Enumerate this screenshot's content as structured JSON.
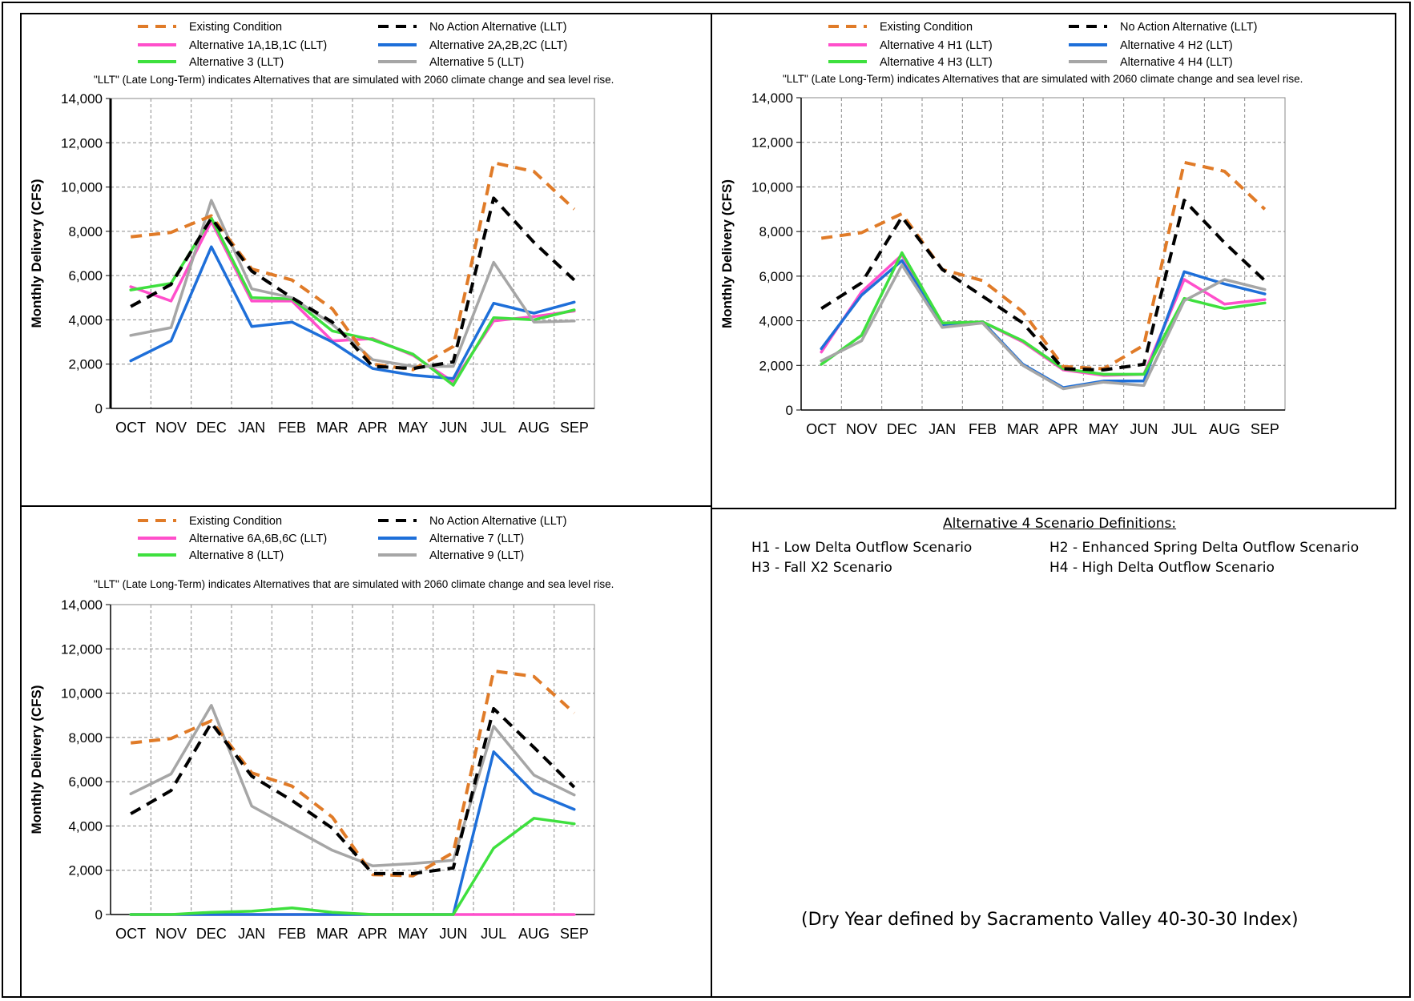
{
  "chart_data": [
    {
      "type": "line",
      "title": "",
      "note": "\"LLT\" (Late Long-Term) indicates Alternatives that are simulated with 2060 climate change and sea level rise.",
      "xlabel": "",
      "ylabel": "Monthly Delivery (CFS)",
      "ylim": [
        0,
        14000
      ],
      "yticks": [
        "0",
        "2,000",
        "4,000",
        "6,000",
        "8,000",
        "10,000",
        "12,000",
        "14,000"
      ],
      "grid": true,
      "legend_position": "top",
      "categories": [
        "OCT",
        "NOV",
        "DEC",
        "JAN",
        "FEB",
        "MAR",
        "APR",
        "MAY",
        "JUN",
        "JUL",
        "AUG",
        "SEP"
      ],
      "series": [
        {
          "name": "Existing Condition",
          "color": "#E07B28",
          "dashed": true,
          "values": [
            7750,
            7950,
            8700,
            6300,
            5800,
            4500,
            2000,
            1750,
            2800,
            11100,
            10700,
            9000
          ]
        },
        {
          "name": "No Action Alternative (LLT)",
          "color": "#000000",
          "dashed": true,
          "values": [
            4600,
            5600,
            8600,
            6200,
            5000,
            3900,
            1900,
            1800,
            2100,
            9500,
            7500,
            5800
          ]
        },
        {
          "name": "Alternative 1A,1B,1C (LLT)",
          "color": "#FF4FCB",
          "dashed": false,
          "values": [
            5500,
            4850,
            8450,
            4850,
            4850,
            3050,
            3150,
            2400,
            1200,
            3950,
            4150,
            4400
          ]
        },
        {
          "name": "Alternative 2A,2B,2C (LLT)",
          "color": "#1E6FD9",
          "dashed": false,
          "values": [
            2150,
            3050,
            7300,
            3700,
            3900,
            3000,
            1800,
            1500,
            1350,
            4750,
            4300,
            4800
          ]
        },
        {
          "name": "Alternative 3 (LLT)",
          "color": "#3EE03E",
          "dashed": false,
          "values": [
            5350,
            5650,
            8600,
            5000,
            4950,
            3500,
            3100,
            2450,
            1050,
            4100,
            4000,
            4450
          ]
        },
        {
          "name": "Alternative 5 (LLT)",
          "color": "#A6A6A6",
          "dashed": false,
          "values": [
            3300,
            3650,
            9400,
            5400,
            5000,
            3800,
            2200,
            1900,
            1900,
            6600,
            3900,
            3950
          ]
        }
      ]
    },
    {
      "type": "line",
      "title": "",
      "note": "\"LLT\" (Late Long-Term) indicates Alternatives that are simulated with 2060 climate change and sea level rise.",
      "xlabel": "",
      "ylabel": "Monthly Delivery (CFS)",
      "ylim": [
        0,
        14000
      ],
      "yticks": [
        "0",
        "2,000",
        "4,000",
        "6,000",
        "8,000",
        "10,000",
        "12,000",
        "14,000"
      ],
      "grid": true,
      "legend_position": "top",
      "categories": [
        "OCT",
        "NOV",
        "DEC",
        "JAN",
        "FEB",
        "MAR",
        "APR",
        "MAY",
        "JUN",
        "JUL",
        "AUG",
        "SEP"
      ],
      "series": [
        {
          "name": "Existing Condition",
          "color": "#E07B28",
          "dashed": true,
          "values": [
            7700,
            7950,
            8800,
            6300,
            5800,
            4400,
            1950,
            1850,
            2900,
            11100,
            10700,
            9000
          ]
        },
        {
          "name": "No Action Alternative (LLT)",
          "color": "#000000",
          "dashed": true,
          "values": [
            4550,
            5700,
            8650,
            6300,
            5100,
            3900,
            1850,
            1800,
            2050,
            9400,
            7500,
            5800
          ]
        },
        {
          "name": "Alternative 4 H1 (LLT)",
          "color": "#FF4FCB",
          "dashed": false,
          "values": [
            2600,
            5300,
            6950,
            3900,
            3950,
            3050,
            1800,
            1550,
            1600,
            5850,
            4750,
            4950
          ]
        },
        {
          "name": "Alternative 4 H2 (LLT)",
          "color": "#1E6FD9",
          "dashed": false,
          "values": [
            2750,
            5150,
            6700,
            3800,
            3950,
            2050,
            1000,
            1300,
            1300,
            6200,
            5650,
            5200
          ]
        },
        {
          "name": "Alternative 4 H3 (LLT)",
          "color": "#3EE03E",
          "dashed": false,
          "values": [
            2050,
            3350,
            7050,
            3900,
            3950,
            3100,
            1850,
            1600,
            1600,
            5000,
            4550,
            4800
          ]
        },
        {
          "name": "Alternative 4 H4 (LLT)",
          "color": "#A6A6A6",
          "dashed": false,
          "values": [
            2200,
            3100,
            6500,
            3700,
            3900,
            2000,
            950,
            1250,
            1100,
            4900,
            5850,
            5400
          ]
        }
      ]
    },
    {
      "type": "line",
      "title": "",
      "note": "\"LLT\" (Late Long-Term) indicates Alternatives that are simulated with 2060 climate change and sea level rise.",
      "xlabel": "",
      "ylabel": "Monthly Delivery (CFS)",
      "ylim": [
        0,
        14000
      ],
      "yticks": [
        "0",
        "2,000",
        "4,000",
        "6,000",
        "8,000",
        "10,000",
        "12,000",
        "14,000"
      ],
      "grid": true,
      "legend_position": "top",
      "categories": [
        "OCT",
        "NOV",
        "DEC",
        "JAN",
        "FEB",
        "MAR",
        "APR",
        "MAY",
        "JUN",
        "JUL",
        "AUG",
        "SEP"
      ],
      "series": [
        {
          "name": "Existing Condition",
          "color": "#E07B28",
          "dashed": true,
          "values": [
            7750,
            7950,
            8750,
            6400,
            5800,
            4400,
            1800,
            1750,
            2800,
            11000,
            10750,
            9100
          ]
        },
        {
          "name": "No Action Alternative (LLT)",
          "color": "#000000",
          "dashed": true,
          "values": [
            4550,
            5600,
            8650,
            6250,
            5150,
            3900,
            1850,
            1850,
            2100,
            9300,
            7550,
            5750
          ]
        },
        {
          "name": "Alternative 6A,6B,6C (LLT)",
          "color": "#FF4FCB",
          "dashed": false,
          "values": [
            0,
            0,
            0,
            0,
            0,
            0,
            0,
            0,
            0,
            0,
            0,
            0
          ]
        },
        {
          "name": "Alternative 7 (LLT)",
          "color": "#1E6FD9",
          "dashed": false,
          "values": [
            0,
            0,
            0,
            0,
            0,
            0,
            0,
            0,
            0,
            7350,
            5500,
            4750
          ]
        },
        {
          "name": "Alternative 8 (LLT)",
          "color": "#3EE03E",
          "dashed": false,
          "values": [
            0,
            0,
            100,
            150,
            300,
            100,
            0,
            0,
            0,
            3000,
            4350,
            4100
          ]
        },
        {
          "name": "Alternative 9 (LLT)",
          "color": "#A6A6A6",
          "dashed": false,
          "values": [
            5450,
            6350,
            9450,
            4900,
            3900,
            2900,
            2200,
            2300,
            2450,
            8500,
            6300,
            5400
          ]
        }
      ]
    }
  ],
  "definitions": {
    "title": "Alternative 4 Scenario Definitions:",
    "items": [
      "H1 - Low Delta Outflow Scenario",
      "H2 - Enhanced Spring Delta Outflow Scenario",
      "H3 - Fall X2 Scenario",
      "H4 - High Delta Outflow Scenario"
    ]
  },
  "footnote": "(Dry Year defined by Sacramento Valley 40-30-30 Index)"
}
